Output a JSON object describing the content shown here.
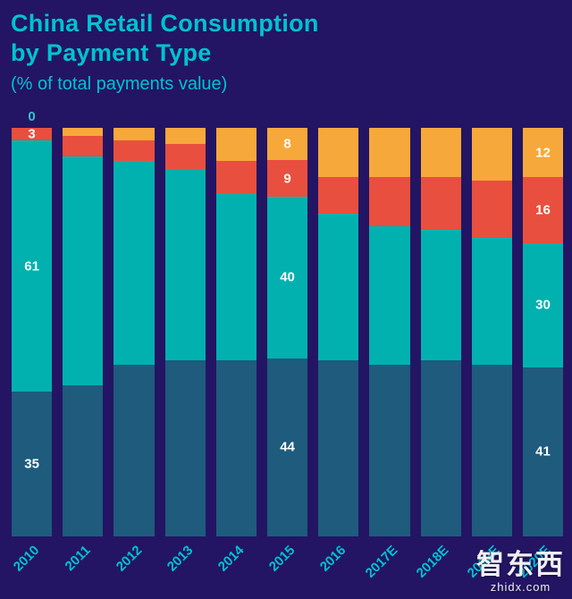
{
  "header": {
    "title_line1": "China Retail Consumption",
    "title_line2": "by Payment Type",
    "subtitle": "(% of total payments value)"
  },
  "colors": {
    "background": "#231563",
    "accent_teal": "#00c3d0",
    "value_label": "#ffffff",
    "dark_blue_bar": "#1e5b7d",
    "teal_bar": "#00b1b0",
    "red_bar": "#e94f3e",
    "orange_bar": "#f7a83b"
  },
  "chart_data": {
    "type": "bar",
    "stacked": true,
    "normalized_to_100": true,
    "title": "China Retail Consumption by Payment Type",
    "subtitle": "(% of total payments value)",
    "xlabel": "",
    "ylabel": "% of total payments value",
    "ylim": [
      0,
      100
    ],
    "grid": false,
    "legend": "none",
    "categories": [
      "2010",
      "2011",
      "2012",
      "2013",
      "2014",
      "2015",
      "2016",
      "2017E",
      "2018E",
      "2019E",
      "2020E"
    ],
    "series": [
      {
        "name": "dark-blue-bottom",
        "color": "#1e5b7d",
        "values": [
          35,
          37,
          42,
          43,
          43,
          44,
          43,
          42,
          43,
          42,
          41
        ]
      },
      {
        "name": "teal",
        "color": "#00b1b0",
        "values": [
          61,
          56,
          50,
          47,
          41,
          40,
          36,
          34,
          32,
          31,
          30
        ]
      },
      {
        "name": "red",
        "color": "#e94f3e",
        "values": [
          3,
          5,
          5,
          6,
          8,
          9,
          9,
          12,
          13,
          14,
          16
        ]
      },
      {
        "name": "orange-top",
        "color": "#f7a83b",
        "values": [
          0,
          2,
          3,
          4,
          8,
          8,
          12,
          12,
          12,
          13,
          12
        ]
      }
    ],
    "value_labels": [
      {
        "bar": 0,
        "segment": 3,
        "text": "0",
        "position": "above"
      },
      {
        "bar": 0,
        "segment": 2,
        "text": "3"
      },
      {
        "bar": 0,
        "segment": 1,
        "text": "61"
      },
      {
        "bar": 0,
        "segment": 0,
        "text": "35"
      },
      {
        "bar": 5,
        "segment": 3,
        "text": "8"
      },
      {
        "bar": 5,
        "segment": 2,
        "text": "9"
      },
      {
        "bar": 5,
        "segment": 1,
        "text": "40"
      },
      {
        "bar": 5,
        "segment": 0,
        "text": "44"
      },
      {
        "bar": 10,
        "segment": 3,
        "text": "12"
      },
      {
        "bar": 10,
        "segment": 2,
        "text": "16"
      },
      {
        "bar": 10,
        "segment": 1,
        "text": "30"
      },
      {
        "bar": 10,
        "segment": 0,
        "text": "41"
      }
    ]
  },
  "watermark": {
    "cjk": "智东西",
    "domain": "zhidx.com"
  }
}
